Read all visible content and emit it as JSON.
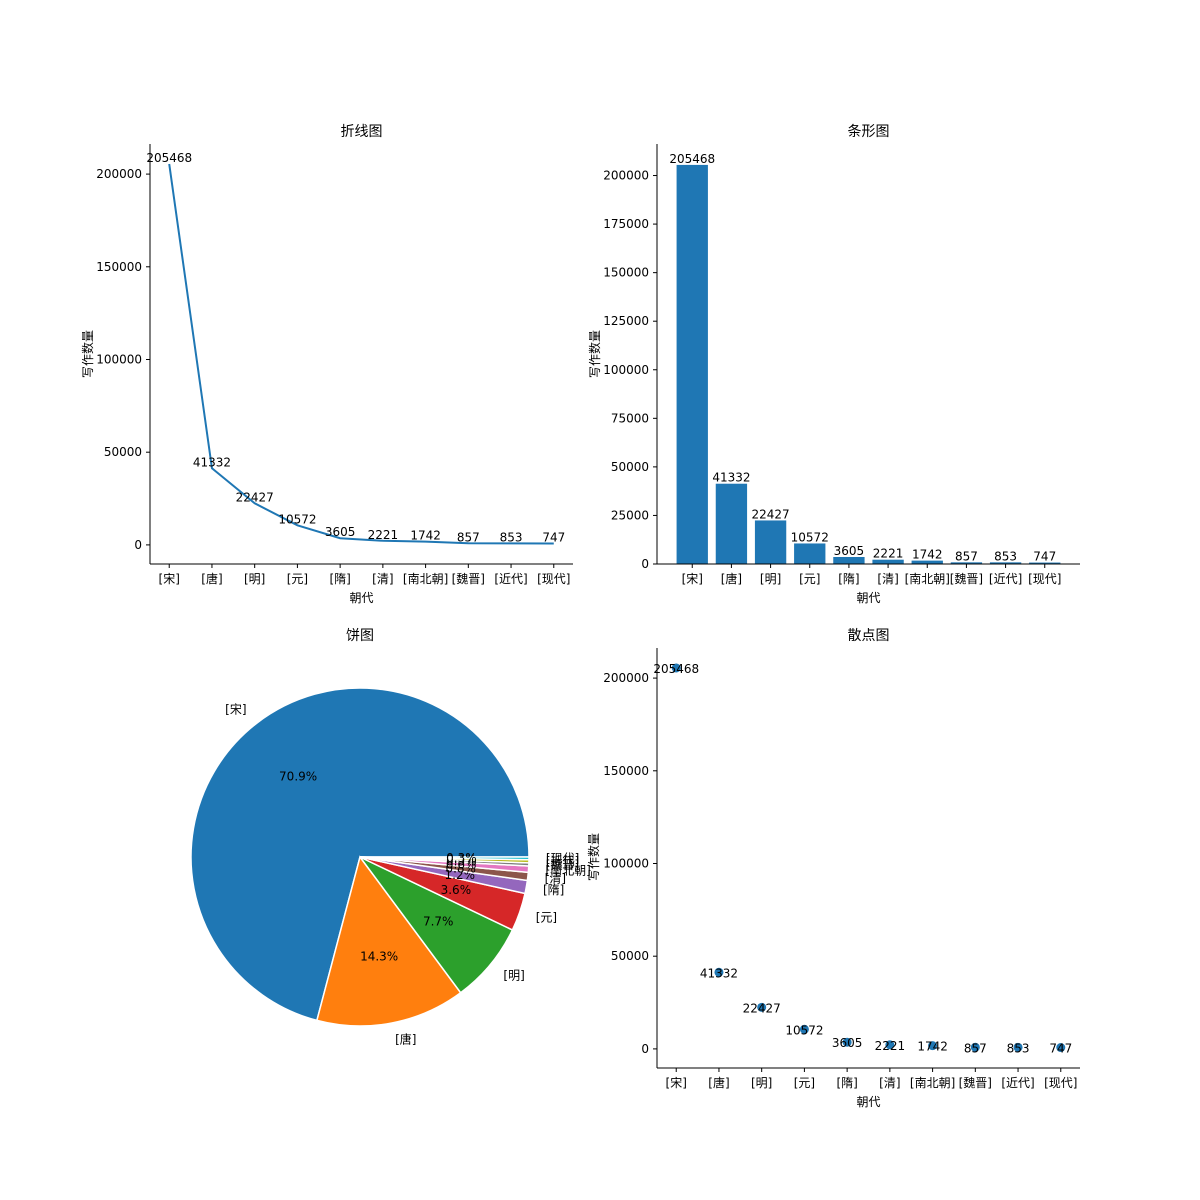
{
  "chart_data": [
    {
      "type": "line",
      "title": "折线图",
      "xlabel": "朝代",
      "ylabel": "写作数量",
      "categories": [
        "[宋]",
        "[唐]",
        "[明]",
        "[元]",
        "[隋]",
        "[清]",
        "[南北朝]",
        "[魏晋]",
        "[近代]",
        "[现代]"
      ],
      "values": [
        205468,
        41332,
        22427,
        10572,
        3605,
        2221,
        1742,
        857,
        853,
        747
      ],
      "yticks": [
        0,
        50000,
        100000,
        150000,
        200000
      ],
      "ylim": [
        -10304,
        216232
      ],
      "color": "#1f77b4"
    },
    {
      "type": "bar",
      "title": "条形图",
      "xlabel": "朝代",
      "ylabel": "写作数量",
      "categories": [
        "[宋]",
        "[唐]",
        "[明]",
        "[元]",
        "[隋]",
        "[清]",
        "[南北朝]",
        "[魏晋]",
        "[近代]",
        "[现代]"
      ],
      "values": [
        205468,
        41332,
        22427,
        10572,
        3605,
        2221,
        1742,
        857,
        853,
        747
      ],
      "yticks": [
        0,
        25000,
        50000,
        75000,
        100000,
        125000,
        150000,
        175000,
        200000
      ],
      "ylim": [
        0,
        216232
      ],
      "color": "#1f77b4"
    },
    {
      "type": "pie",
      "title": "饼图",
      "ylabel": "写作数量",
      "categories": [
        "[宋]",
        "[唐]",
        "[明]",
        "[元]",
        "[隋]",
        "[清]",
        "[南北朝]",
        "[魏晋]",
        "[近代]",
        "[现代]"
      ],
      "values": [
        205468,
        41332,
        22427,
        10572,
        3605,
        2221,
        1742,
        857,
        853,
        747
      ],
      "pct_labels": [
        "70.9%",
        "14.3%",
        "7.7%",
        "3.6%",
        "1.2%",
        "0.8%",
        "0.6%",
        "0.3%",
        "0.3%",
        "0.3%"
      ],
      "colors": [
        "#1f77b4",
        "#ff7f0e",
        "#2ca02c",
        "#d62728",
        "#9467bd",
        "#8c564b",
        "#e377c2",
        "#7f7f7f",
        "#bcbd22",
        "#17becf"
      ]
    },
    {
      "type": "scatter",
      "title": "散点图",
      "xlabel": "朝代",
      "categories": [
        "[宋]",
        "[唐]",
        "[明]",
        "[元]",
        "[隋]",
        "[清]",
        "[南北朝]",
        "[魏晋]",
        "[近代]",
        "[现代]"
      ],
      "values": [
        205468,
        41332,
        22427,
        10572,
        3605,
        2221,
        1742,
        857,
        853,
        747
      ],
      "yticks": [
        0,
        50000,
        100000,
        150000,
        200000
      ],
      "ylim": [
        -10304,
        216232
      ],
      "color": "#1f77b4"
    }
  ]
}
